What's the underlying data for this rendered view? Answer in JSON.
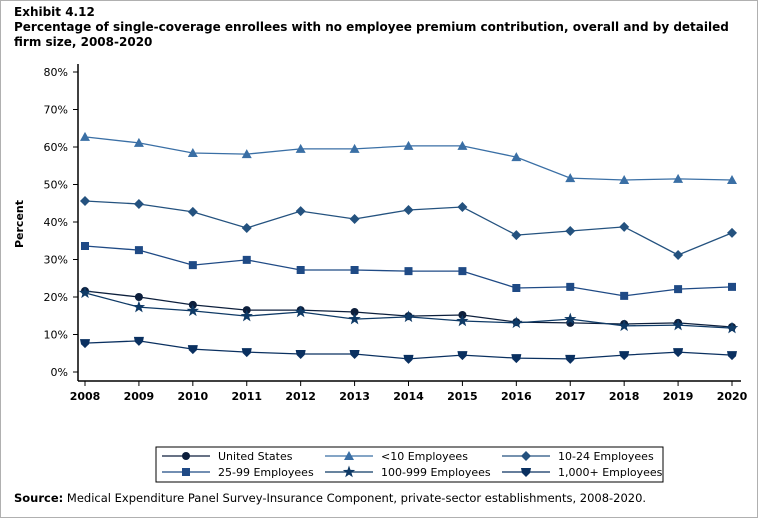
{
  "exhibit": "Exhibit 4.12",
  "title": "Percentage of single-coverage enrollees with no employee premium contribution, overall and by detailed firm size, 2008-2020",
  "source_label": "Source:",
  "source_text": " Medical Expenditure Panel Survey-Insurance Component, private-sector establishments, 2008-2020.",
  "chart_data": {
    "type": "line",
    "title": "Percentage of single-coverage enrollees with no employee premium contribution, overall and by detailed firm size, 2008-2020",
    "xlabel": "",
    "ylabel": "Percent",
    "x": [
      2008,
      2009,
      2010,
      2011,
      2012,
      2013,
      2014,
      2015,
      2016,
      2017,
      2018,
      2019,
      2020
    ],
    "ylim": [
      0,
      80
    ],
    "yticks": [
      "0%",
      "10%",
      "20%",
      "30%",
      "40%",
      "50%",
      "60%",
      "70%",
      "80%"
    ],
    "grid": false,
    "legend_placement": "bottom",
    "series": [
      {
        "name": "United States",
        "marker": "circle",
        "color": "#0d1f3c",
        "values": [
          21.6,
          20.0,
          17.9,
          16.5,
          16.5,
          16.0,
          14.9,
          15.2,
          13.3,
          13.1,
          12.8,
          13.1,
          12.0
        ]
      },
      {
        "name": "<10 Employees",
        "marker": "triangle",
        "color": "#3a6fa5",
        "values": [
          62.7,
          61.1,
          58.4,
          58.1,
          59.5,
          59.5,
          60.3,
          60.3,
          57.3,
          51.7,
          51.2,
          51.5,
          51.2
        ]
      },
      {
        "name": "10-24 Employees",
        "marker": "diamond",
        "color": "#24527f",
        "values": [
          45.6,
          44.8,
          42.7,
          38.4,
          42.9,
          40.8,
          43.2,
          44.0,
          36.5,
          37.6,
          38.7,
          31.2,
          37.1
        ]
      },
      {
        "name": "25-99 Employees",
        "marker": "square",
        "color": "#1f4a85",
        "values": [
          33.6,
          32.5,
          28.5,
          29.9,
          27.2,
          27.2,
          26.9,
          26.9,
          22.4,
          22.7,
          20.3,
          22.1,
          22.7
        ]
      },
      {
        "name": "100-999 Employees",
        "marker": "star",
        "color": "#0f3a66",
        "values": [
          21.1,
          17.3,
          16.3,
          14.9,
          16.0,
          14.1,
          14.7,
          13.6,
          13.1,
          14.1,
          12.3,
          12.5,
          11.7
        ]
      },
      {
        "name": "1,000+ Employees",
        "marker": "down-triangle",
        "color": "#0a3060",
        "values": [
          7.7,
          8.3,
          6.1,
          5.3,
          4.8,
          4.8,
          3.5,
          4.5,
          3.7,
          3.5,
          4.5,
          5.3,
          4.5
        ]
      }
    ]
  }
}
